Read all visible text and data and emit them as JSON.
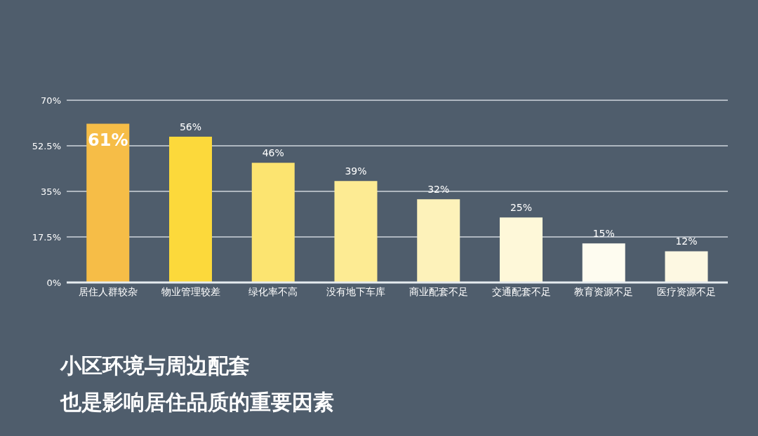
{
  "chart_data": {
    "type": "bar",
    "categories": [
      "居住人群较杂",
      "物业管理较差",
      "绿化率不高",
      "没有地下车库",
      "商业配套不足",
      "交通配套不足",
      "教育资源不足",
      "医疗资源不足"
    ],
    "values": [
      61,
      56,
      46,
      39,
      32,
      25,
      15,
      12
    ],
    "value_labels": [
      "61%",
      "56%",
      "46%",
      "39%",
      "32%",
      "25%",
      "15%",
      "12%"
    ],
    "colors": [
      "#f6bd47",
      "#fcd93b",
      "#fce470",
      "#fdeb93",
      "#fdf2ba",
      "#fef8d9",
      "#fefcf0",
      "#fdf8e2"
    ],
    "ylim": [
      0,
      70
    ],
    "yticks": [
      {
        "value": 0,
        "label": "0%"
      },
      {
        "value": 17.5,
        "label": "17.5%"
      },
      {
        "value": 35,
        "label": "35%"
      },
      {
        "value": 52.5,
        "label": "52.5%"
      },
      {
        "value": 70,
        "label": "70%"
      }
    ],
    "grid": "y",
    "legend": false,
    "annotations": [
      "小区环境与周边配套",
      "也是影响居住品质的重要因素"
    ]
  }
}
